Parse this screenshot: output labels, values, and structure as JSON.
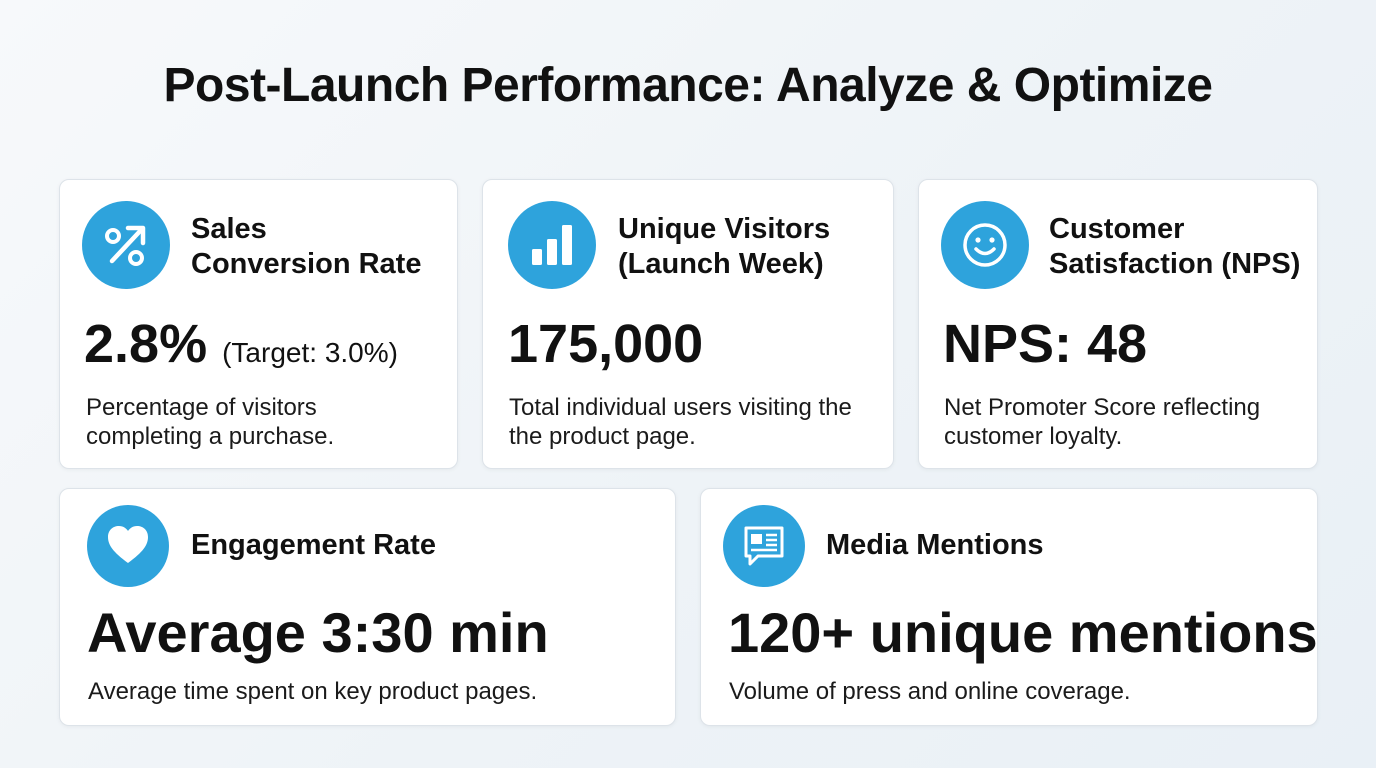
{
  "title": "Post-Launch Performance: Analyze & Optimize",
  "colors": {
    "accent": "#2ea3dc",
    "card_bg": "#ffffff",
    "border": "#dde3e9"
  },
  "cards": [
    {
      "icon": "percent-arrow-icon",
      "title_line1": "Sales",
      "title_line2": "Conversion Rate",
      "value": "2.8%",
      "value_note": "(Target: 3.0%)",
      "desc_line1": "Percentage of visitors",
      "desc_line2": "completing a purchase."
    },
    {
      "icon": "bar-chart-icon",
      "title_line1": "Unique Visitors",
      "title_line2": "(Launch Week)",
      "value": "175,000",
      "desc_line1": "Total individual users visiting the",
      "desc_line2": "the product page."
    },
    {
      "icon": "smiley-icon",
      "title_line1": "Customer",
      "title_line2": "Satisfaction (NPS)",
      "value": "NPS: 48",
      "desc_line1": "Net Promoter Score reflecting",
      "desc_line2": "customer loyalty."
    },
    {
      "icon": "heart-icon",
      "title": "Engagement Rate",
      "value": "Average 3:30 min",
      "desc": "Average time spent on key product pages."
    },
    {
      "icon": "newspaper-chat-icon",
      "title": "Media Mentions",
      "value": "120+ unique mentions",
      "desc": "Volume of press and online coverage."
    }
  ]
}
